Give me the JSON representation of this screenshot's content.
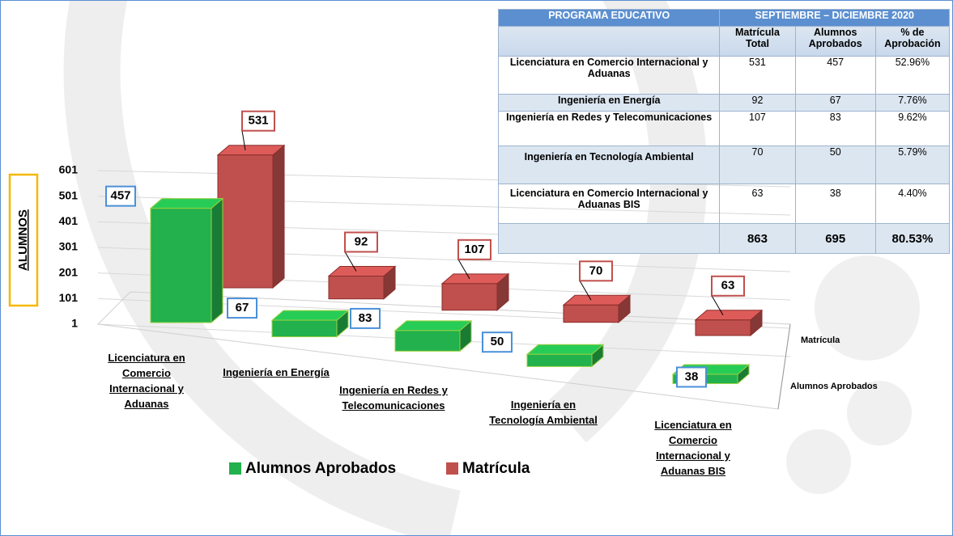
{
  "chart_data": {
    "type": "bar3d",
    "y_label": "ALUMNOS",
    "categories": [
      "Licenciatura en Comercio Internacional y Aduanas",
      "Ingeniería en Energía",
      "Ingeniería en Redes y Telecomunicaciones",
      "Ingeniería en Tecnología Ambiental",
      "Licenciatura en Comercio Internacional y Aduanas BIS"
    ],
    "series": [
      {
        "name": "Alumnos Aprobados",
        "color": "#22b14c",
        "values": [
          457,
          67,
          83,
          50,
          38
        ]
      },
      {
        "name": "Matrícula",
        "color": "#c0504d",
        "values": [
          531,
          92,
          107,
          70,
          63
        ]
      }
    ],
    "ylim": [
      1,
      601
    ],
    "yticks": [
      1,
      101,
      201,
      301,
      401,
      501,
      601
    ],
    "grid": true
  },
  "table": {
    "header": [
      "PROGRAMA EDUCATIVO",
      "SEPTIEMBRE – DICIEMBRE 2020"
    ],
    "columns": [
      "Matrícula Total",
      "Alumnos Aprobados",
      "% de Aprobación"
    ],
    "rows": [
      [
        "Licenciatura en Comercio Internacional y Aduanas",
        "531",
        "457",
        "52.96%"
      ],
      [
        "Ingeniería en Energía",
        "92",
        "67",
        "7.76%"
      ],
      [
        "Ingeniería en Redes y Telecomunicaciones",
        "107",
        "83",
        "9.62%"
      ],
      [
        "Ingeniería en Tecnología Ambiental",
        "70",
        "50",
        "5.79%"
      ],
      [
        "Licenciatura en Comercio Internacional y Aduanas BIS",
        "63",
        "38",
        "4.40%"
      ]
    ],
    "totals": [
      "863",
      "695",
      "80.53%"
    ]
  }
}
